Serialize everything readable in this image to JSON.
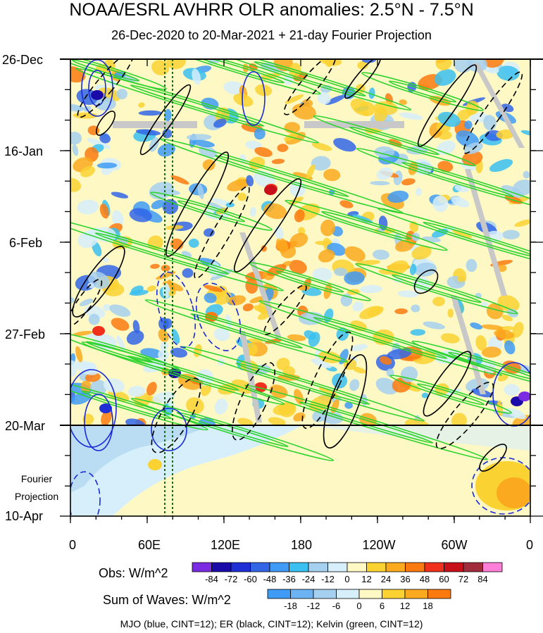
{
  "title": "NOAA/ESRL AVHRR OLR anomalies: 2.5°N - 7.5°N",
  "subtitle": "26-Dec-2020 to 20-Mar-2021 + 21-day Fourier Projection",
  "chart_data": {
    "type": "heatmap",
    "x_ticks": [
      "0",
      "60E",
      "120E",
      "180",
      "120W",
      "60W",
      "0"
    ],
    "y_ticks": [
      "26-Dec",
      "16-Jan",
      "6-Feb",
      "27-Feb",
      "20-Mar",
      "10-Apr"
    ],
    "projection_label": [
      "Fourier",
      "Projection"
    ],
    "obs_colorbar": {
      "label": "Obs: W/m^2",
      "levels": [
        "-84",
        "-72",
        "-60",
        "-48",
        "-36",
        "-24",
        "-12",
        "0",
        "12",
        "24",
        "36",
        "48",
        "60",
        "72",
        "84"
      ],
      "colors": [
        "#7b2be2",
        "#1a0aa8",
        "#1f2fd6",
        "#3366e6",
        "#3f9bf5",
        "#39c0f0",
        "#a6d0ef",
        "#d6effb",
        "#fdf8c4",
        "#fad232",
        "#fbaa1f",
        "#fb7a10",
        "#f0301a",
        "#c8101a",
        "#a02c3c",
        "#ff7fd8"
      ]
    },
    "waves_colorbar": {
      "label": "Sum of Waves: W/m^2",
      "levels": [
        "-18",
        "-12",
        "-6",
        "0",
        "6",
        "12",
        "18"
      ],
      "colors": [
        "#3f9bf5",
        "#6cb3f3",
        "#a6d0ef",
        "#d6effb",
        "#fdf8c4",
        "#fad232",
        "#fbaa1f",
        "#fb7a10"
      ]
    },
    "overlays": "MJO (blue, CINT=12); ER (black, CINT=12); Kelvin (green, CINT=12)"
  }
}
